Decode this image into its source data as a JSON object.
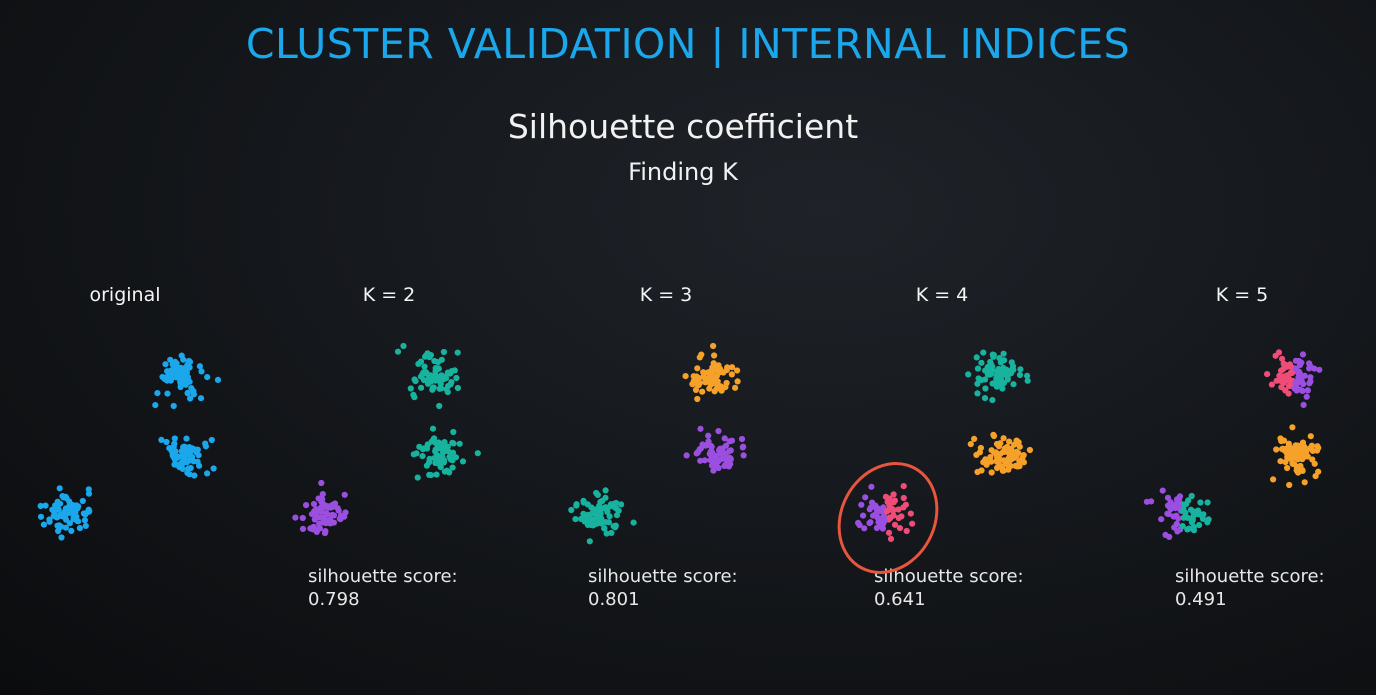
{
  "header": {
    "title": "CLUSTER VALIDATION | INTERNAL INDICES",
    "subtitle": "Silhouette coefficient",
    "subtitle2": "Finding K"
  },
  "colors": {
    "blue": "#1aa7ec",
    "teal": "#17b39f",
    "purple": "#9b4fe0",
    "orange": "#f6a12a",
    "pink": "#ef4d78",
    "highlight": "#e8553f"
  },
  "panels": [
    {
      "label": "original",
      "score_label": "",
      "score_value": ""
    },
    {
      "label": "K = 2",
      "score_label": "silhouette score:",
      "score_value": "0.798"
    },
    {
      "label": "K = 3",
      "score_label": "silhouette score:",
      "score_value": "0.801"
    },
    {
      "label": "K = 4",
      "score_label": "silhouette score:",
      "score_value": "0.641"
    },
    {
      "label": "K = 5",
      "score_label": "silhouette score:",
      "score_value": "0.491"
    }
  ]
}
